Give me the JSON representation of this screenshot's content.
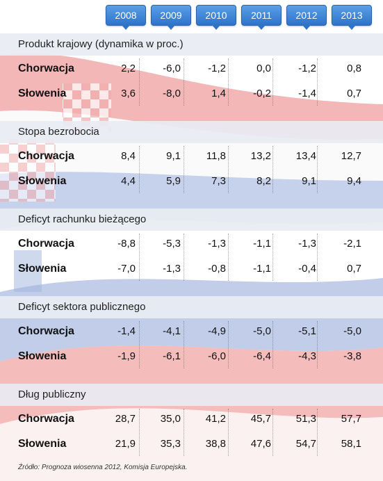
{
  "chart_data": {
    "type": "table",
    "years": [
      "2008",
      "2009",
      "2010",
      "2011",
      "2012",
      "2013"
    ],
    "sections": [
      {
        "title": "Produkt krajowy (dynamika w proc.)",
        "rows": [
          {
            "label": "Chorwacja",
            "values": [
              "2,2",
              "-6,0",
              "-1,2",
              "0,0",
              "-1,2",
              "0,8"
            ]
          },
          {
            "label": "Słowenia",
            "values": [
              "3,6",
              "-8,0",
              "1,4",
              "-0,2",
              "-1,4",
              "0,7"
            ]
          }
        ]
      },
      {
        "title": "Stopa bezrobocia",
        "rows": [
          {
            "label": "Chorwacja",
            "values": [
              "8,4",
              "9,1",
              "11,8",
              "13,2",
              "13,4",
              "12,7"
            ]
          },
          {
            "label": "Słowenia",
            "values": [
              "4,4",
              "5,9",
              "7,3",
              "8,2",
              "9,1",
              "9,4"
            ]
          }
        ]
      },
      {
        "title": "Deficyt rachunku bieżącego",
        "rows": [
          {
            "label": "Chorwacja",
            "values": [
              "-8,8",
              "-5,3",
              "-1,3",
              "-1,1",
              "-1,3",
              "-2,1"
            ]
          },
          {
            "label": "Słowenia",
            "values": [
              "-7,0",
              "-1,3",
              "-0,8",
              "-1,1",
              "-0,4",
              "0,7"
            ]
          }
        ]
      },
      {
        "title": "Deficyt sektora publicznego",
        "rows": [
          {
            "label": "Chorwacja",
            "values": [
              "-1,4",
              "-4,1",
              "-4,9",
              "-5,0",
              "-5,1",
              "-5,0"
            ]
          },
          {
            "label": "Słowenia",
            "values": [
              "-1,9",
              "-6,1",
              "-6,0",
              "-6,4",
              "-4,3",
              "-3,8"
            ]
          }
        ]
      },
      {
        "title": "Dług publiczny",
        "rows": [
          {
            "label": "Chorwacja",
            "values": [
              "28,7",
              "35,0",
              "41,2",
              "45,7",
              "51,3",
              "57,7"
            ]
          },
          {
            "label": "Słowenia",
            "values": [
              "21,9",
              "35,3",
              "38,8",
              "47,6",
              "54,7",
              "58,1"
            ]
          }
        ]
      }
    ],
    "source": "Źródło: Prognoza wiosenna 2012, Komisja Europejska."
  },
  "colors": {
    "year_tab": "#2f73c9",
    "section_header": "#e8ecf2",
    "flag_red": "#e03a3a",
    "flag_blue": "#2b55b5"
  }
}
